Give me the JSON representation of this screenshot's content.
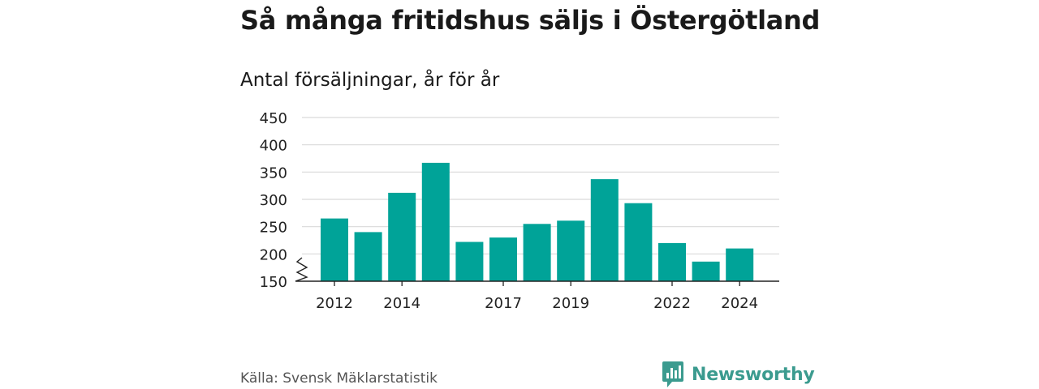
{
  "header": {
    "title": "Så många fritidshus säljs i Östergötland",
    "subtitle": "Antal försäljningar, år för år"
  },
  "footer": {
    "source": "Källa: Svensk Mäklarstatistik",
    "brand": "Newsworthy",
    "brand_icon": "bar-chart-speech-bubble-icon"
  },
  "colors": {
    "bar": "#00a398",
    "grid": "#d9d9d9",
    "axis": "#222222",
    "brand": "#3b9b8f"
  },
  "chart_data": {
    "type": "bar",
    "categories": [
      "2012",
      "2013",
      "2014",
      "2015",
      "2016",
      "2017",
      "2018",
      "2019",
      "2020",
      "2021",
      "2022",
      "2023",
      "2024"
    ],
    "values": [
      265,
      240,
      312,
      367,
      222,
      230,
      255,
      261,
      337,
      293,
      220,
      186,
      210
    ],
    "x_tick_labels": [
      "2012",
      "2014",
      "2017",
      "2019",
      "2022",
      "2024"
    ],
    "y_ticks": [
      "150",
      "200",
      "250",
      "300",
      "350",
      "400",
      "450"
    ],
    "ylim": [
      150,
      450
    ],
    "axis_break": true,
    "grid": true,
    "legend": false
  }
}
